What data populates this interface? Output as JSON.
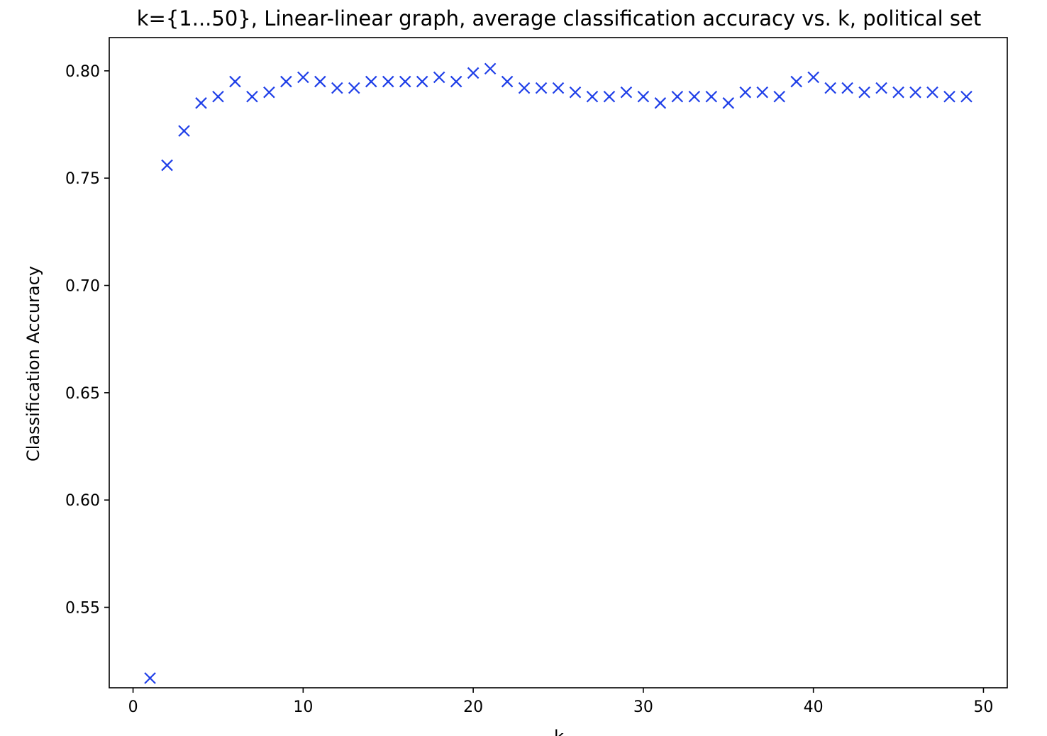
{
  "chart_data": {
    "type": "scatter",
    "title": "k={1...50}, Linear-linear graph, average classification accuracy vs. k, political set",
    "xlabel": "k",
    "ylabel": "Classification Accuracy",
    "xlim": [
      -1.4,
      51.4
    ],
    "ylim": [
      0.5125,
      0.8155
    ],
    "x_ticks": [
      0,
      10,
      20,
      30,
      40,
      50
    ],
    "y_ticks": [
      0.55,
      0.6,
      0.65,
      0.7,
      0.75,
      0.8
    ],
    "y_tick_labels": [
      "0.55",
      "0.60",
      "0.65",
      "0.70",
      "0.75",
      "0.80"
    ],
    "grid": false,
    "marker": "x",
    "series": [
      {
        "color": "#1f3fe8",
        "x": [
          1,
          2,
          3,
          4,
          5,
          6,
          7,
          8,
          9,
          10,
          11,
          12,
          13,
          14,
          15,
          16,
          17,
          18,
          19,
          20,
          21,
          22,
          23,
          24,
          25,
          26,
          27,
          28,
          29,
          30,
          31,
          32,
          33,
          34,
          35,
          36,
          37,
          38,
          39,
          40,
          41,
          42,
          43,
          44,
          45,
          46,
          47,
          48,
          49
        ],
        "y": [
          0.517,
          0.756,
          0.772,
          0.785,
          0.788,
          0.795,
          0.788,
          0.79,
          0.795,
          0.797,
          0.795,
          0.792,
          0.792,
          0.795,
          0.795,
          0.795,
          0.795,
          0.797,
          0.795,
          0.799,
          0.801,
          0.795,
          0.792,
          0.792,
          0.792,
          0.79,
          0.788,
          0.788,
          0.79,
          0.788,
          0.785,
          0.788,
          0.788,
          0.788,
          0.785,
          0.79,
          0.79,
          0.788,
          0.795,
          0.797,
          0.792,
          0.792,
          0.79,
          0.792,
          0.79,
          0.79,
          0.79,
          0.788,
          0.788
        ]
      }
    ]
  }
}
